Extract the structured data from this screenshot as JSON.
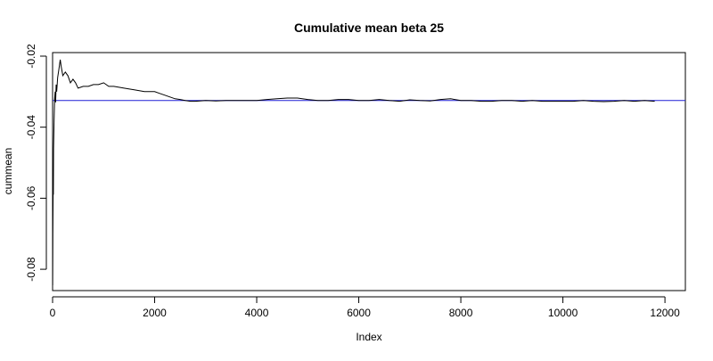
{
  "chart_data": {
    "type": "line",
    "title": "Cumulative mean beta 25",
    "xlabel": "Index",
    "ylabel": "cummean",
    "xlim": [
      0,
      12400
    ],
    "ylim": [
      -0.086,
      -0.019
    ],
    "x_ticks": [
      0,
      2000,
      4000,
      6000,
      8000,
      10000,
      12000
    ],
    "x_tick_labels": [
      "0",
      "2000",
      "4000",
      "6000",
      "8000",
      "10000",
      "12000"
    ],
    "y_ticks": [
      -0.08,
      -0.06,
      -0.04,
      -0.02
    ],
    "y_tick_labels": [
      "-0.08",
      "-0.06",
      "-0.04",
      "-0.02"
    ],
    "grid": false,
    "hline": {
      "y": -0.0325,
      "color": "#1f1fd6"
    },
    "series": [
      {
        "color": "#000000",
        "x": [
          1,
          5,
          10,
          15,
          20,
          30,
          40,
          50,
          60,
          70,
          80,
          100,
          120,
          150,
          170,
          200,
          250,
          300,
          350,
          400,
          450,
          500,
          600,
          700,
          800,
          900,
          1000,
          1100,
          1200,
          1400,
          1600,
          1800,
          2000,
          2100,
          2200,
          2300,
          2400,
          2500,
          2600,
          2700,
          2800,
          3000,
          3200,
          3400,
          3600,
          3800,
          4000,
          4200,
          4400,
          4600,
          4800,
          5000,
          5200,
          5400,
          5600,
          5800,
          6000,
          6200,
          6400,
          6600,
          6800,
          7000,
          7200,
          7400,
          7600,
          7800,
          8000,
          8200,
          8400,
          8600,
          8800,
          9000,
          9200,
          9400,
          9600,
          9800,
          10000,
          10200,
          10400,
          10600,
          10800,
          11000,
          11200,
          11400,
          11600,
          11800
        ],
        "y": [
          -0.0845,
          -0.07,
          -0.058,
          -0.059,
          -0.046,
          -0.038,
          -0.032,
          -0.03,
          -0.033,
          -0.028,
          -0.03,
          -0.026,
          -0.024,
          -0.021,
          -0.023,
          -0.0255,
          -0.0245,
          -0.0255,
          -0.0275,
          -0.0265,
          -0.0275,
          -0.029,
          -0.0285,
          -0.0285,
          -0.028,
          -0.028,
          -0.0275,
          -0.0285,
          -0.0285,
          -0.029,
          -0.0295,
          -0.03,
          -0.03,
          -0.0305,
          -0.031,
          -0.0315,
          -0.032,
          -0.0322,
          -0.0325,
          -0.0327,
          -0.0327,
          -0.0325,
          -0.0326,
          -0.0325,
          -0.0325,
          -0.0325,
          -0.0325,
          -0.0322,
          -0.032,
          -0.0318,
          -0.0318,
          -0.0322,
          -0.0325,
          -0.0325,
          -0.0322,
          -0.0322,
          -0.0325,
          -0.0325,
          -0.0322,
          -0.0325,
          -0.0327,
          -0.0323,
          -0.0325,
          -0.0326,
          -0.0322,
          -0.032,
          -0.0325,
          -0.0325,
          -0.0327,
          -0.0327,
          -0.0325,
          -0.0325,
          -0.0327,
          -0.0325,
          -0.0327,
          -0.0327,
          -0.0327,
          -0.0327,
          -0.0325,
          -0.0327,
          -0.0328,
          -0.0327,
          -0.0325,
          -0.0327,
          -0.0325,
          -0.0327
        ]
      }
    ]
  }
}
